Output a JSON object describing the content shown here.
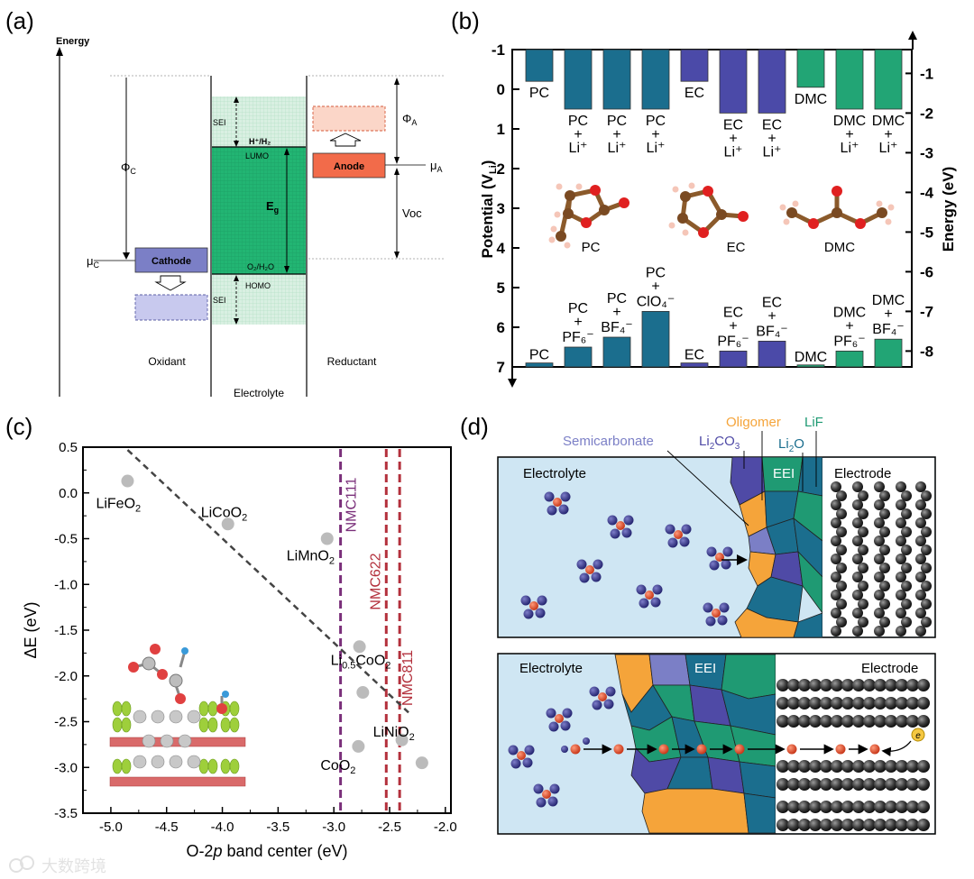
{
  "panels": {
    "a": {
      "label": "(a)",
      "energy_axis": "Energy",
      "phi_c": "Φ",
      "phi_c_sub": "C",
      "phi_a": "Φ",
      "phi_a_sub": "A",
      "mu_c": "μ",
      "mu_c_sub": "C",
      "mu_a": "μ",
      "mu_a_sub": "A",
      "voc": "Voc",
      "sei": "SEI",
      "h_h2": "H⁺/H₂",
      "lumo": "LUMO",
      "eg": "E",
      "eg_sub": "g",
      "o2_h2o": "O₂/H₂O",
      "homo": "HOMO",
      "cathode": "Cathode",
      "anode": "Anode",
      "oxidant": "Oxidant",
      "electrolyte": "Electrolyte",
      "reductant": "Reductant",
      "colors": {
        "electrolyte": "#22b573",
        "cathode": "#7b7fc6",
        "anode": "#f26b4a"
      }
    },
    "b": {
      "label": "(b)",
      "y_left_label": "Potential (V",
      "y_left_sub": "Li",
      "y_left_close": ")",
      "y_right_label": "Energy (eV)",
      "left_ticks": [
        "-1",
        "0",
        "1",
        "2",
        "3",
        "4",
        "5",
        "6",
        "7"
      ],
      "right_ticks": [
        "-1",
        "-2",
        "-3",
        "-4",
        "-5",
        "-6",
        "-7",
        "-8"
      ],
      "molecules": [
        "PC",
        "EC",
        "DMC"
      ],
      "colors": {
        "PC": "#1b6e8e",
        "EC": "#4b4aa8",
        "DMC": "#22a575"
      }
    },
    "c": {
      "label": "(c)",
      "nmc": [
        "NMC111",
        "NMC622",
        "NMC811"
      ],
      "colors": {
        "dashed_fit": "#444444",
        "NMC111": "#7a2f7a",
        "NMC622": "#b3303c",
        "NMC811": "#b3303c",
        "points": "#bbbbbb"
      }
    },
    "d": {
      "label": "(d)",
      "top": {
        "semicarbonate": "Semicarbonate",
        "li2co3": "Li",
        "li2co3_sub": "2",
        "li2co3_end": "CO",
        "li2co3_sub2": "3",
        "oligomer": "Oligomer",
        "lif": "LiF",
        "li2o": "Li",
        "li2o_sub": "2",
        "li2o_end": "O",
        "electrolyte": "Electrolyte",
        "eei": "EEI",
        "electrode": "Electrode"
      },
      "bottom": {
        "electrolyte": "Electrolyte",
        "eei": "EEI",
        "electrode": "Electrode",
        "e_minus": "e"
      },
      "colors": {
        "electrolyte": "#cfe6f3",
        "orange": "#f5a43a",
        "green": "#1f9a73",
        "teal": "#1b6e8e",
        "blue": "#4f4aa6",
        "lavender": "#7b7fc6"
      }
    },
    "watermark": "大数跨境"
  },
  "chart_data": [
    {
      "panel": "b",
      "type": "bar",
      "title": "",
      "ylabel": "Potential (V_Li)",
      "y2label": "Energy (eV)",
      "ylim": [
        -1,
        7
      ],
      "y2lim": [
        -0.4,
        -8.4
      ],
      "baseline": -1,
      "top_group": {
        "categories": [
          "PC",
          "PC + Li⁺",
          "PC + Li⁺",
          "PC + Li⁺",
          "EC",
          "EC + Li⁺",
          "EC + Li⁺",
          "DMC",
          "DMC + Li⁺",
          "DMC + Li⁺"
        ],
        "series": [
          "PC",
          "PC",
          "PC",
          "PC",
          "EC",
          "EC",
          "EC",
          "DMC",
          "DMC",
          "DMC"
        ],
        "values": [
          -0.2,
          0.5,
          0.5,
          0.5,
          -0.2,
          0.6,
          0.6,
          -0.05,
          0.5,
          0.5
        ]
      },
      "bottom_group": {
        "categories": [
          "PC",
          "PC + PF₆⁻",
          "PC + BF₄⁻",
          "PC + ClO₄⁻",
          "EC",
          "EC + PF₆⁻",
          "EC + BF₄⁻",
          "DMC",
          "DMC + PF₆⁻",
          "DMC + BF₄⁻"
        ],
        "series": [
          "PC",
          "PC",
          "PC",
          "PC",
          "EC",
          "EC",
          "EC",
          "DMC",
          "DMC",
          "DMC"
        ],
        "values": [
          6.9,
          6.5,
          6.25,
          5.6,
          6.9,
          6.6,
          6.35,
          6.95,
          6.6,
          6.3
        ]
      }
    },
    {
      "panel": "c",
      "type": "scatter",
      "xlabel": "O-2p band center (eV)",
      "ylabel": "ΔE (eV)",
      "xlim": [
        -5.25,
        -1.95
      ],
      "ylim": [
        -3.5,
        0.5
      ],
      "xticks": [
        -5.0,
        -4.5,
        -4.0,
        -3.5,
        -3.0,
        -2.5,
        -2.0
      ],
      "yticks": [
        0.5,
        0.0,
        -0.5,
        -1.0,
        -1.5,
        -2.0,
        -2.5,
        -3.0,
        -3.5
      ],
      "xtick_labels": [
        "-5.0",
        "-4.5",
        "-4.0",
        "-3.5",
        "-3.0",
        "-2.5",
        "-2.0"
      ],
      "ytick_labels": [
        "0.5",
        "0.0",
        "-0.5",
        "-1.0",
        "-1.5",
        "-2.0",
        "-2.5",
        "-3.0",
        "-3.5"
      ],
      "points": [
        {
          "x": -4.85,
          "y": 0.13,
          "label": "LiFeO",
          "label_sub": "2"
        },
        {
          "x": -3.95,
          "y": -0.34,
          "label": "LiCoO",
          "label_sub": "2"
        },
        {
          "x": -3.06,
          "y": -0.5,
          "label": "LiMnO",
          "label_sub": "2"
        },
        {
          "x": -2.77,
          "y": -1.68,
          "label": "Li",
          "label_sub": "0.5",
          "label_end": "CoO",
          "label_sub2": "2"
        },
        {
          "x": -2.74,
          "y": -2.18,
          "label": ""
        },
        {
          "x": -2.78,
          "y": -2.77,
          "label": "CoO",
          "label_sub": "2"
        },
        {
          "x": -2.39,
          "y": -2.7,
          "label": "LiNiO",
          "label_sub": "2"
        },
        {
          "x": -2.21,
          "y": -2.95,
          "label": ""
        }
      ],
      "fit_line": {
        "x": [
          -4.85,
          -2.33
        ],
        "y": [
          0.47,
          -2.4
        ]
      },
      "vlines": [
        {
          "x": -2.94,
          "label": "NMC111"
        },
        {
          "x": -2.53,
          "label": "NMC622"
        },
        {
          "x": -2.41,
          "label": "NMC811"
        }
      ]
    }
  ]
}
